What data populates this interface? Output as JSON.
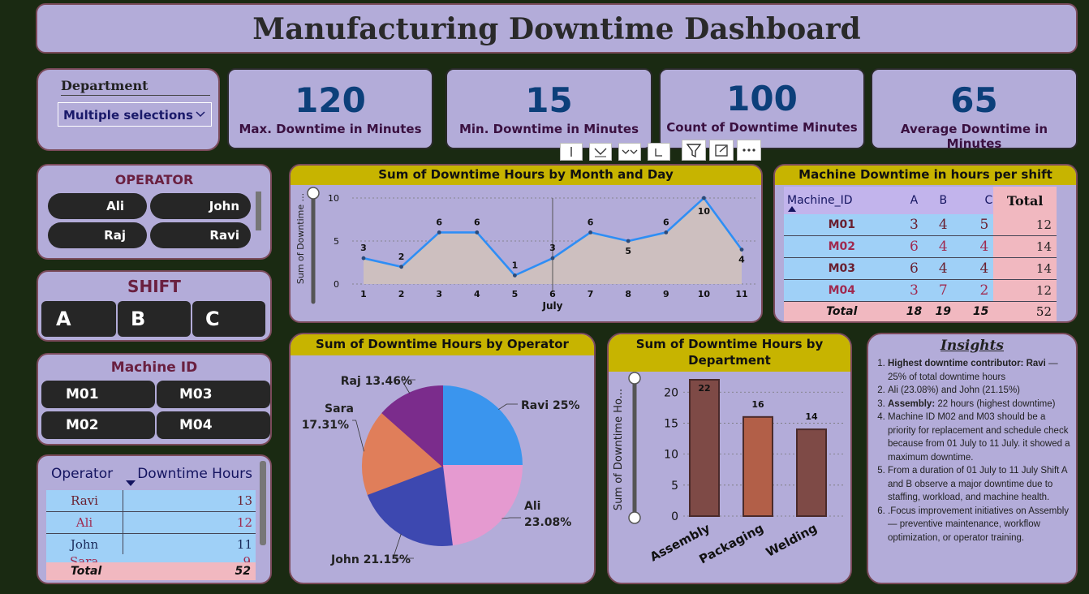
{
  "title": "Manufacturing Downtime Dashboard",
  "department_slicer": {
    "label": "Department",
    "value": "Multiple selections"
  },
  "kpis": [
    {
      "value": "120",
      "label": "Max. Downtime in Minutes"
    },
    {
      "value": "15",
      "label": "Min. Downtime in Minutes"
    },
    {
      "value": "100",
      "label": "Count of Downtime Minutes"
    },
    {
      "value": "65",
      "label": "Average Downtime in Minutes"
    }
  ],
  "operator_slicer": {
    "title": "OPERATOR",
    "items": [
      "Ali",
      "John",
      "Raj",
      "Ravi"
    ]
  },
  "shift_slicer": {
    "title": "SHIFT",
    "items": [
      "A",
      "B",
      "C"
    ]
  },
  "machine_slicer": {
    "title": "Machine ID",
    "items": [
      "M01",
      "M03",
      "M02",
      "M04"
    ]
  },
  "operator_table": {
    "headers": [
      "Operator",
      "Downtime Hours"
    ],
    "rows": [
      [
        "Ravi",
        "13"
      ],
      [
        "Ali",
        "12"
      ],
      [
        "John",
        "11"
      ],
      [
        "Sara",
        "9"
      ]
    ],
    "total": [
      "Total",
      "52"
    ]
  },
  "machine_table": {
    "title": "Machine Downtime in hours per shift",
    "headers": [
      "Machine_ID",
      "A",
      "B",
      "C",
      "Total"
    ],
    "rows": [
      [
        "M01",
        "3",
        "4",
        "5",
        "12"
      ],
      [
        "M02",
        "6",
        "4",
        "4",
        "14"
      ],
      [
        "M03",
        "6",
        "4",
        "4",
        "14"
      ],
      [
        "M04",
        "3",
        "7",
        "2",
        "12"
      ]
    ],
    "total": [
      "Total",
      "18",
      "19",
      "15",
      "52"
    ]
  },
  "insights": {
    "title": "Insights",
    "items": [
      {
        "bold": "Highest downtime contributor: Ravi",
        "text": " — 25% of total downtime hours"
      },
      {
        "bold": "",
        "text": "Ali (23.08%) and John (21.15%)"
      },
      {
        "bold": "Assembly:",
        "text": " 22 hours (highest downtime)"
      },
      {
        "bold": "",
        "text": "Machine ID  M02 and M03 should be a priority for replacement and schedule check because from 01 July to 11 July. it showed a maximum downtime."
      },
      {
        "bold": "",
        "text": "From a duration of  01 July to 11 July Shift A and B  observe a major downtime due to staffing, workload, and machine health."
      },
      {
        "bold": "",
        "text": ".Focus improvement initiatives on Assembly — preventive maintenance, workflow optimization, or operator training."
      }
    ]
  },
  "toolbar_icons": [
    "pin-icon",
    "drill-down-icon",
    "expand-all-icon",
    "drill-up-icon",
    "filter-icon",
    "focus-mode-icon",
    "more-options-icon"
  ],
  "chart_data": [
    {
      "type": "area",
      "title": "Sum of Downtime Hours by Month and Day",
      "xlabel": "July",
      "ylabel": "Sum of Downtime ...",
      "x": [
        1,
        2,
        3,
        4,
        5,
        6,
        7,
        8,
        9,
        10,
        11
      ],
      "values": [
        3,
        2,
        6,
        6,
        1,
        3,
        6,
        5,
        6,
        10,
        4
      ],
      "yticks": [
        0,
        5,
        10
      ],
      "ylim": [
        0,
        10
      ],
      "color": "#2e8ef5",
      "fill": "#cdbfbf"
    },
    {
      "type": "pie",
      "title": "Sum of Downtime Hours by Operator",
      "slices": [
        {
          "label": "Ravi",
          "percent": "25%",
          "value": 13,
          "color": "#3a95ee"
        },
        {
          "label": "Ali",
          "percent": "23.08%",
          "value": 12,
          "color": "#e59ad0"
        },
        {
          "label": "John",
          "percent": "21.15%",
          "value": 11,
          "color": "#3d48b0"
        },
        {
          "label": "Sara",
          "percent": "17.31%",
          "value": 9,
          "color": "#e07e5a"
        },
        {
          "label": "Raj",
          "percent": "13.46%",
          "value": 7,
          "color": "#7b2c8c"
        }
      ]
    },
    {
      "type": "bar",
      "title": "Sum of Downtime Hours by Department",
      "categories": [
        "Assembly",
        "Packaging",
        "Welding"
      ],
      "values": [
        22,
        16,
        14
      ],
      "colors": [
        "#7e4a46",
        "#b25f48",
        "#7e4a46"
      ],
      "ylabel": "Sum of Downtime Ho...",
      "yticks": [
        0,
        5,
        10,
        15,
        20
      ],
      "ylim": [
        0,
        22
      ]
    }
  ]
}
